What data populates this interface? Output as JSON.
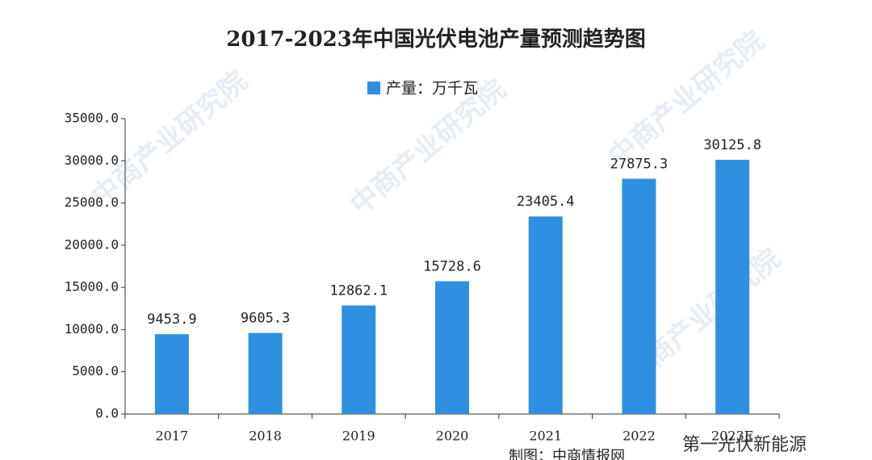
{
  "chart_data": {
    "type": "bar",
    "title": "2017-2023年中国光伏电池产量预测趋势图",
    "series": [
      {
        "name": "产量：万千瓦",
        "color": "#2f8fe0",
        "values": [
          9453.9,
          9605.3,
          12862.1,
          15728.6,
          23405.4,
          27875.3,
          30125.8
        ]
      }
    ],
    "categories": [
      "2017",
      "2018",
      "2019",
      "2020",
      "2021",
      "2022",
      "2023E"
    ],
    "ylim": [
      0,
      35000
    ],
    "yticks": [
      {
        "value": 0,
        "label": "0.0"
      },
      {
        "value": 5000,
        "label": "5000.0"
      },
      {
        "value": 10000,
        "label": "10000.0"
      },
      {
        "value": 15000,
        "label": "15000.0"
      },
      {
        "value": 20000,
        "label": "20000.0"
      },
      {
        "value": 25000,
        "label": "25000.0"
      },
      {
        "value": 30000,
        "label": "30000.0"
      },
      {
        "value": 35000,
        "label": "35000.0"
      }
    ],
    "grid": false,
    "watermark": "中商产业研究院",
    "credit": "制图：中商情报网",
    "logo": "第一光伏新能源"
  }
}
